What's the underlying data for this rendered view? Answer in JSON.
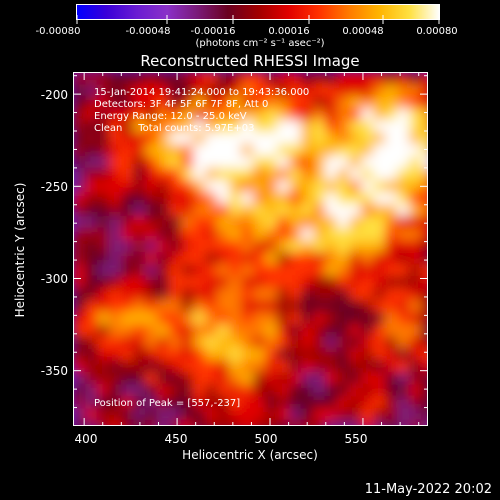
{
  "colorbar": {
    "tick_labels": [
      "-0.00080",
      "-0.00048",
      "-0.00016",
      "0.00016",
      "0.00048",
      "0.00080"
    ],
    "unit_label": "(photons cm⁻² s⁻¹ asec⁻²)",
    "value_range": [
      -0.0008,
      0.0008
    ],
    "colormap": [
      "#0000ff",
      "#3a00d8",
      "#6a1cd2",
      "#8a30c8",
      "#7a1a78",
      "#6a0020",
      "#a00000",
      "#e00000",
      "#ff3000",
      "#ff7a00",
      "#ffb400",
      "#ffe040",
      "#ffffff"
    ]
  },
  "image": {
    "title": "Reconstructed RHESSI Image",
    "info_lines": [
      "15-Jan-2014 19:41:24.000 to 19:43:36.000",
      "Detectors: 3F 4F 5F 6F 7F 8F, Att 0",
      "Energy Range: 12.0 - 25.0 keV",
      "Clean     Total counts: 5.97E+03"
    ],
    "peak_label": "Position of Peak = [557,-237]",
    "peak": [
      557,
      -237
    ]
  },
  "axes": {
    "xlabel": "Heliocentric X (arcsec)",
    "ylabel": "Heliocentric Y (arcsec)",
    "xlim": [
      394,
      585
    ],
    "ylim": [
      -380,
      -188
    ],
    "xticks": [
      "400",
      "450",
      "500",
      "550"
    ],
    "yticks": [
      "-200",
      "-250",
      "-300",
      "-350"
    ]
  },
  "footer": {
    "date": "11-May-2022 20:02"
  }
}
